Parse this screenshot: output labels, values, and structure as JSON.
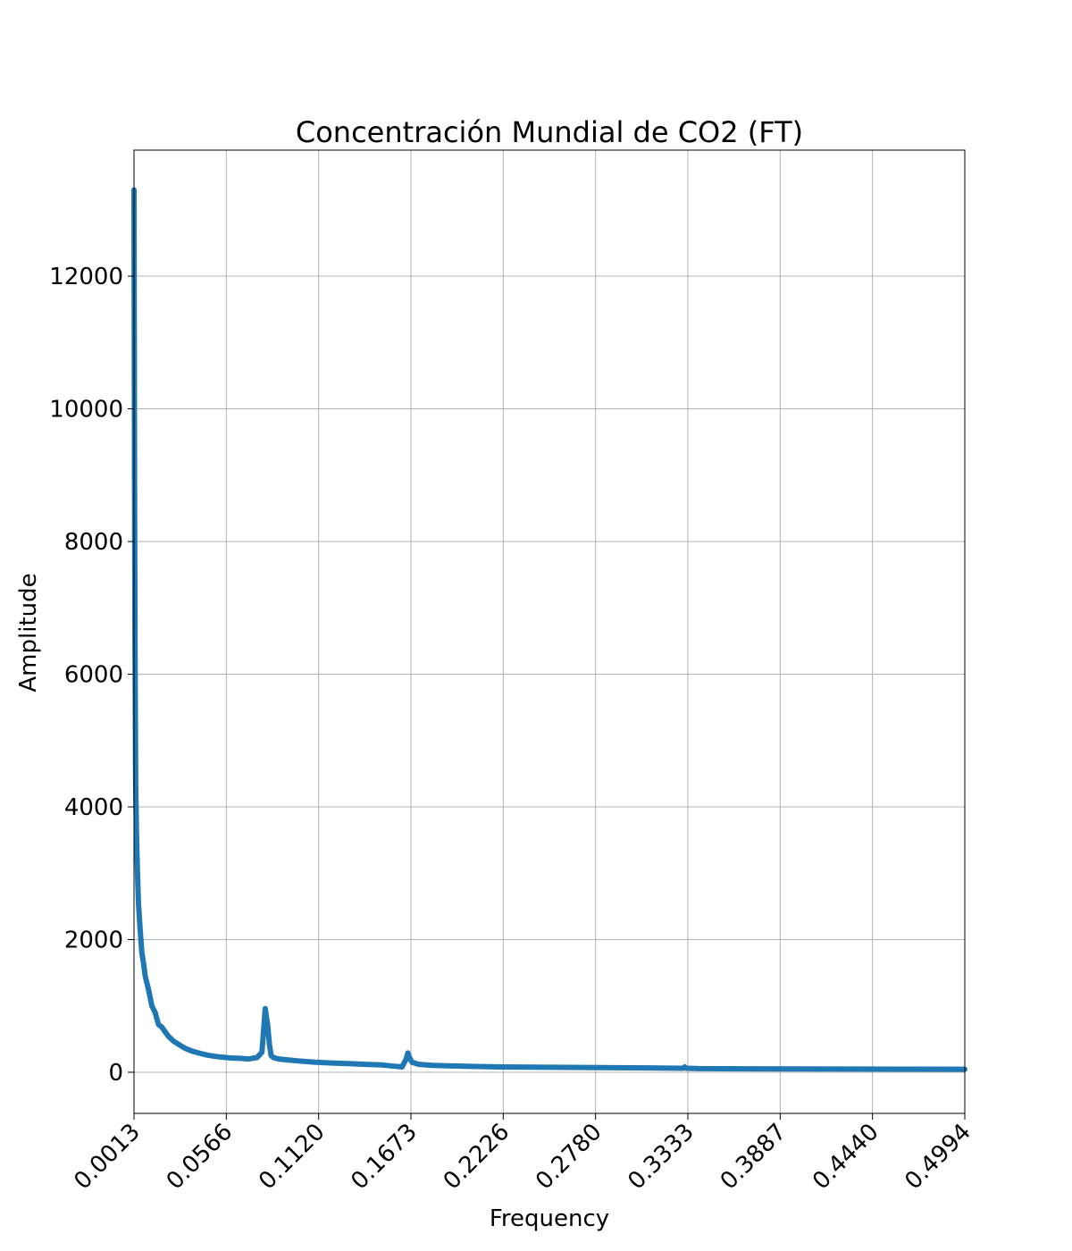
{
  "chart_data": {
    "type": "line",
    "title": "Concentración Mundial de CO2 (FT)",
    "xlabel": "Frequency",
    "ylabel": "Amplitude",
    "xlim": [
      0.0013,
      0.4994
    ],
    "ylim": [
      -620,
      13900
    ],
    "grid": true,
    "x_ticks": [
      "0.0013",
      "0.0566",
      "0.1120",
      "0.1673",
      "0.2226",
      "0.2780",
      "0.3333",
      "0.3887",
      "0.4440",
      "0.4994"
    ],
    "y_ticks": [
      0,
      2000,
      4000,
      6000,
      8000,
      10000,
      12000
    ],
    "series": [
      {
        "color": "#1f77b4",
        "x": [
          0.0013,
          0.0016,
          0.0019,
          0.0023,
          0.0028,
          0.0034,
          0.004,
          0.005,
          0.006,
          0.007,
          0.008,
          0.01,
          0.012,
          0.014,
          0.016,
          0.018,
          0.02,
          0.022,
          0.025,
          0.028,
          0.032,
          0.036,
          0.04,
          0.045,
          0.05,
          0.055,
          0.06,
          0.065,
          0.07,
          0.075,
          0.078,
          0.08,
          0.0815,
          0.0825,
          0.0835,
          0.085,
          0.088,
          0.092,
          0.1,
          0.11,
          0.12,
          0.13,
          0.14,
          0.15,
          0.158,
          0.162,
          0.1645,
          0.1655,
          0.1665,
          0.168,
          0.172,
          0.18,
          0.2,
          0.22,
          0.25,
          0.28,
          0.31,
          0.3305,
          0.3315,
          0.3325,
          0.34,
          0.37,
          0.4,
          0.43,
          0.46,
          0.4994
        ],
        "y": [
          13300,
          9000,
          6500,
          4300,
          3600,
          3000,
          2550,
          2150,
          1800,
          1650,
          1450,
          1250,
          1000,
          900,
          720,
          680,
          610,
          540,
          470,
          420,
          360,
          320,
          290,
          260,
          240,
          225,
          215,
          210,
          200,
          220,
          300,
          960,
          700,
          420,
          250,
          220,
          200,
          190,
          170,
          150,
          140,
          130,
          120,
          110,
          90,
          80,
          200,
          290,
          220,
          150,
          120,
          105,
          90,
          80,
          75,
          70,
          65,
          60,
          80,
          60,
          55,
          52,
          50,
          48,
          47,
          45
        ]
      }
    ]
  }
}
